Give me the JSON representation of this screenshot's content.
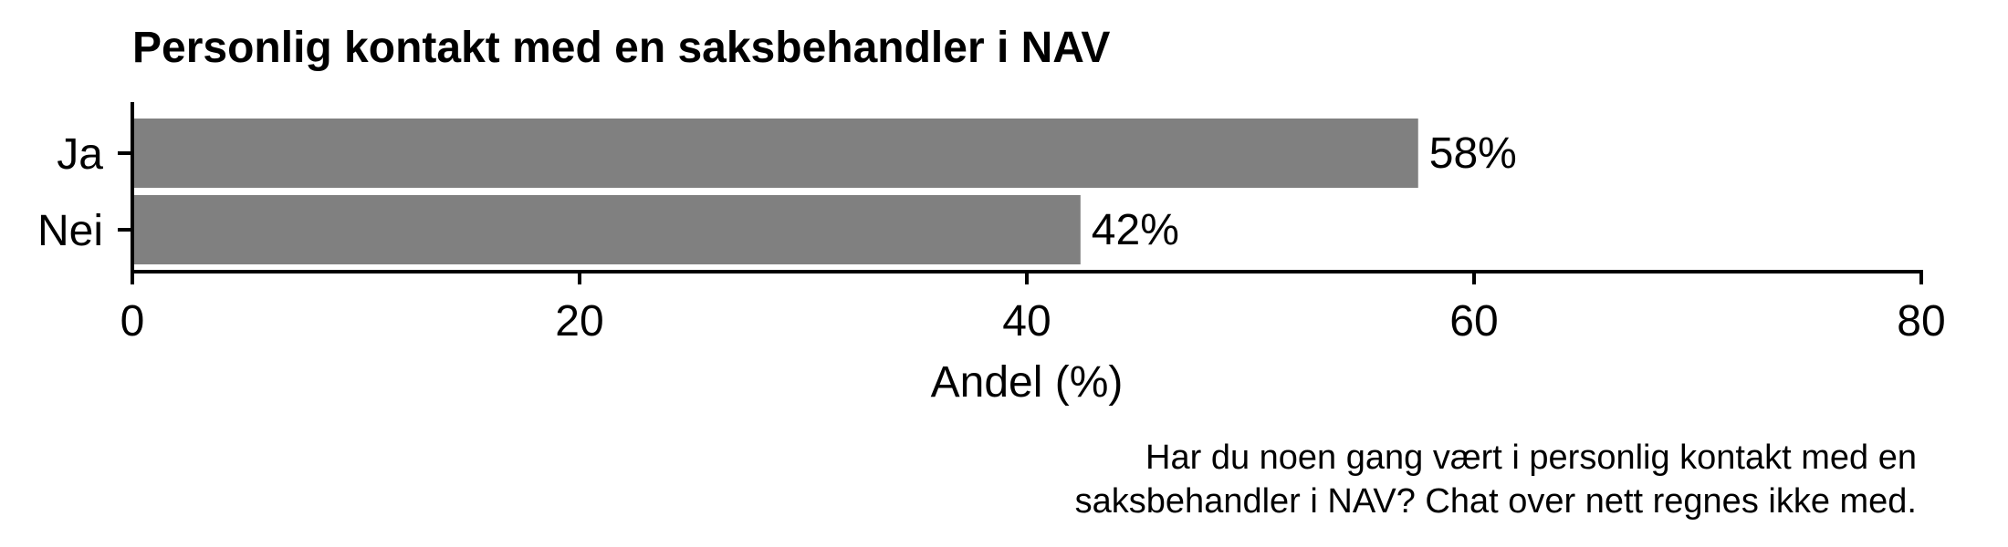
{
  "chart_data": {
    "type": "bar",
    "orientation": "horizontal",
    "title": "Personlig kontakt med en saksbehandler i NAV",
    "categories": [
      "Ja",
      "Nei"
    ],
    "values": [
      57.5,
      42.4
    ],
    "value_labels": [
      "58%",
      "42%"
    ],
    "xlabel": "Andel (%)",
    "ylabel": "",
    "xlim": [
      0,
      80
    ],
    "x_ticks": [
      0,
      20,
      40,
      60,
      80
    ],
    "caption_lines": [
      "Har du noen gang vært i personlig kontakt med en",
      "saksbehandler i NAV? Chat over nett regnes ikke med."
    ],
    "grid": false,
    "legend": "none",
    "colors": {
      "bar": "#808080",
      "axis": "#000000",
      "text": "#000000"
    }
  }
}
